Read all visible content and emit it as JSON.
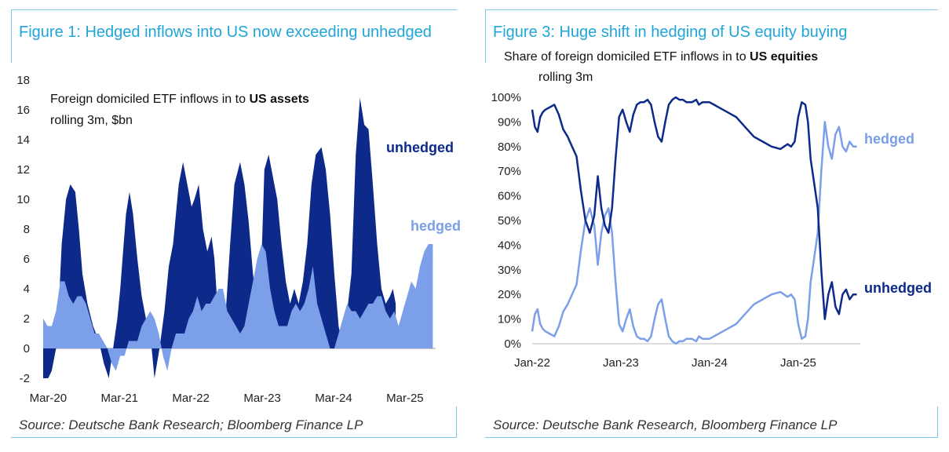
{
  "figure1": {
    "title": "Figure 1: Hedged inflows into US now exceeding unhedged",
    "source": "Source: Deutsche Bank Research; Bloomberg Finance LP"
  },
  "figure3": {
    "title": "Figure 3: Huge shift in hedging of US equity buying",
    "source": "Source: Deutsche Bank Research, Bloomberg Finance LP"
  },
  "chart_data": [
    {
      "type": "area",
      "subtitle_part1": "Foreign domiciled ETF inflows in to ",
      "subtitle_bold": "US assets",
      "subtitle_line2": "rolling 3m, $bn",
      "ylim": [
        -2,
        18
      ],
      "y_ticks": [
        "18",
        "16",
        "14",
        "12",
        "10",
        "8",
        "6",
        "4",
        "2",
        "0",
        "-2"
      ],
      "x_ticks": [
        "Mar-20",
        "Mar-21",
        "Mar-22",
        "Mar-23",
        "Mar-24",
        "Mar-25"
      ],
      "x_range": [
        2020.1,
        2025.6
      ],
      "colors": {
        "unhedged": "#0d2a8a",
        "hedged": "#7b9fe8"
      },
      "series": [
        {
          "name": "unhedged",
          "x": [
            2020.1,
            2020.17,
            2020.22,
            2020.28,
            2020.33,
            2020.36,
            2020.42,
            2020.48,
            2020.55,
            2020.6,
            2020.65,
            2020.72,
            2020.8,
            2020.88,
            2020.95,
            2021.02,
            2021.08,
            2021.14,
            2021.18,
            2021.22,
            2021.26,
            2021.31,
            2021.36,
            2021.42,
            2021.48,
            2021.54,
            2021.6,
            2021.66,
            2021.73,
            2021.8,
            2021.86,
            2021.92,
            2021.96,
            2022.0,
            2022.06,
            2022.12,
            2022.18,
            2022.22,
            2022.28,
            2022.34,
            2022.4,
            2022.46,
            2022.5,
            2022.54,
            2022.6,
            2022.66,
            2022.72,
            2022.78,
            2022.86,
            2022.92,
            2022.98,
            2023.04,
            2023.1,
            2023.16,
            2023.2,
            2023.26,
            2023.32,
            2023.38,
            2023.44,
            2023.5,
            2023.56,
            2023.62,
            2023.68,
            2023.74,
            2023.8,
            2023.86,
            2023.92,
            2024.0,
            2024.06,
            2024.12,
            2024.18,
            2024.24,
            2024.3,
            2024.36,
            2024.42,
            2024.48,
            2024.54,
            2024.6,
            2024.66,
            2024.72,
            2024.78,
            2024.84,
            2024.9,
            2024.96,
            2025.0,
            2025.04
          ],
          "values": [
            -2,
            -2,
            -1.5,
            0,
            4,
            7,
            10,
            11,
            10.5,
            8,
            5,
            3,
            1.5,
            0.5,
            -1,
            -2,
            0,
            2,
            4,
            6.5,
            9,
            10.5,
            9,
            6,
            3.5,
            2,
            1,
            -2,
            0,
            2.5,
            5.5,
            7,
            9,
            11,
            12.5,
            11,
            9.5,
            10,
            11,
            8,
            6.5,
            7.5,
            6,
            3,
            1.5,
            2.5,
            7,
            11,
            12.5,
            11,
            8.5,
            5,
            3,
            6,
            12,
            13,
            11.5,
            10,
            7,
            4.5,
            3,
            4,
            3,
            4.5,
            7,
            11,
            13,
            13.5,
            12,
            9,
            5,
            1.5,
            0,
            2.5,
            5,
            13,
            16.8,
            15,
            14.7,
            11,
            7,
            4,
            3,
            3.5,
            4,
            3
          ]
        },
        {
          "name": "hedged",
          "x": [
            2020.1,
            2020.16,
            2020.22,
            2020.28,
            2020.34,
            2020.4,
            2020.46,
            2020.52,
            2020.58,
            2020.64,
            2020.7,
            2020.76,
            2020.82,
            2020.88,
            2020.94,
            2021.0,
            2021.06,
            2021.12,
            2021.18,
            2021.24,
            2021.3,
            2021.36,
            2021.42,
            2021.48,
            2021.54,
            2021.6,
            2021.66,
            2021.72,
            2021.78,
            2021.84,
            2021.9,
            2021.96,
            2022.02,
            2022.08,
            2022.14,
            2022.2,
            2022.26,
            2022.32,
            2022.38,
            2022.44,
            2022.5,
            2022.56,
            2022.62,
            2022.68,
            2022.74,
            2022.8,
            2022.86,
            2022.92,
            2022.98,
            2023.04,
            2023.1,
            2023.16,
            2023.22,
            2023.28,
            2023.34,
            2023.4,
            2023.46,
            2023.52,
            2023.58,
            2023.64,
            2023.7,
            2023.76,
            2023.82,
            2023.88,
            2023.94,
            2024.0,
            2024.06,
            2024.12,
            2024.18,
            2024.24,
            2024.3,
            2024.36,
            2024.42,
            2024.48,
            2024.54,
            2024.6,
            2024.66,
            2024.72,
            2024.78,
            2024.84,
            2024.9,
            2024.96,
            2025.02,
            2025.08,
            2025.14,
            2025.2,
            2025.26,
            2025.32,
            2025.38,
            2025.44,
            2025.5,
            2025.56
          ],
          "values": [
            2,
            1.5,
            1.5,
            2.5,
            4.5,
            4.5,
            3.5,
            3,
            3.5,
            3.5,
            3,
            2,
            1,
            1,
            0.5,
            0,
            -1,
            -1.5,
            -0.5,
            -0.5,
            0.5,
            0.5,
            0.5,
            1.5,
            2,
            2.5,
            2,
            1,
            -0.5,
            -1.5,
            0,
            1,
            1,
            1,
            2,
            2.5,
            3.5,
            2.5,
            3,
            3,
            3.5,
            4,
            4,
            2.5,
            2,
            1.5,
            1,
            1.5,
            3,
            4.5,
            6,
            7,
            6.5,
            4,
            2.5,
            1.5,
            1.5,
            1.5,
            2.5,
            3,
            2.5,
            3,
            4,
            5.5,
            3,
            2,
            1,
            0,
            0,
            1,
            2,
            3,
            2.5,
            2.5,
            2,
            2.5,
            3,
            3,
            3.5,
            3.5,
            2.5,
            2,
            2.5,
            1.5,
            2.5,
            3.5,
            4.5,
            4,
            5.5,
            6.5,
            7,
            7
          ]
        }
      ]
    },
    {
      "type": "line",
      "subtitle_part1": "Share of foreign domiciled ETF inflows in to ",
      "subtitle_bold": "US equities",
      "subtitle_line2": "rolling 3m",
      "ylim": [
        0,
        100
      ],
      "y_ticks": [
        "100%",
        "90%",
        "80%",
        "70%",
        "60%",
        "50%",
        "40%",
        "30%",
        "20%",
        "10%",
        "0%"
      ],
      "x_ticks": [
        "Jan-22",
        "Jan-23",
        "Jan-24",
        "Jan-25"
      ],
      "x_range": [
        2022.0,
        2025.7
      ],
      "colors": {
        "unhedged": "#0d2a8a",
        "hedged": "#7b9fe8"
      },
      "series": [
        {
          "name": "unhedged",
          "x": [
            2022.0,
            2022.03,
            2022.06,
            2022.09,
            2022.12,
            2022.15,
            2022.2,
            2022.25,
            2022.3,
            2022.35,
            2022.4,
            2022.45,
            2022.5,
            2022.55,
            2022.6,
            2022.65,
            2022.7,
            2022.74,
            2022.78,
            2022.82,
            2022.86,
            2022.9,
            2022.94,
            2022.98,
            2023.02,
            2023.06,
            2023.1,
            2023.14,
            2023.18,
            2023.22,
            2023.26,
            2023.3,
            2023.34,
            2023.38,
            2023.42,
            2023.46,
            2023.5,
            2023.54,
            2023.58,
            2023.62,
            2023.66,
            2023.7,
            2023.74,
            2023.8,
            2023.85,
            2023.88,
            2023.92,
            2023.96,
            2024.0,
            2024.05,
            2024.1,
            2024.2,
            2024.3,
            2024.4,
            2024.5,
            2024.6,
            2024.7,
            2024.8,
            2024.84,
            2024.88,
            2024.92,
            2024.96,
            2025.0,
            2025.04,
            2025.08,
            2025.11,
            2025.14,
            2025.18,
            2025.22,
            2025.26,
            2025.3,
            2025.34,
            2025.38,
            2025.42,
            2025.46,
            2025.5,
            2025.54,
            2025.58,
            2025.62,
            2025.66
          ],
          "values": [
            95,
            88,
            86,
            92,
            94,
            95,
            96,
            97,
            93,
            87,
            84,
            80,
            76,
            62,
            50,
            45,
            52,
            68,
            55,
            48,
            45,
            55,
            75,
            92,
            95,
            90,
            86,
            93,
            97,
            98,
            98,
            99,
            97,
            90,
            84,
            82,
            90,
            97,
            99,
            100,
            99,
            99,
            98,
            98,
            99,
            97,
            98,
            98,
            98,
            97,
            96,
            94,
            92,
            88,
            84,
            82,
            80,
            79,
            80,
            81,
            80,
            82,
            92,
            98,
            97,
            90,
            75,
            65,
            55,
            30,
            10,
            20,
            25,
            15,
            12,
            20,
            22,
            18,
            20,
            20
          ]
        },
        {
          "name": "hedged",
          "x": [
            2022.0,
            2022.03,
            2022.06,
            2022.09,
            2022.12,
            2022.15,
            2022.2,
            2022.25,
            2022.3,
            2022.35,
            2022.4,
            2022.45,
            2022.5,
            2022.55,
            2022.6,
            2022.65,
            2022.7,
            2022.74,
            2022.78,
            2022.82,
            2022.86,
            2022.9,
            2022.94,
            2022.98,
            2023.02,
            2023.06,
            2023.1,
            2023.14,
            2023.18,
            2023.22,
            2023.26,
            2023.3,
            2023.34,
            2023.38,
            2023.42,
            2023.46,
            2023.5,
            2023.54,
            2023.58,
            2023.62,
            2023.66,
            2023.7,
            2023.74,
            2023.8,
            2023.85,
            2023.88,
            2023.92,
            2023.96,
            2024.0,
            2024.05,
            2024.1,
            2024.2,
            2024.3,
            2024.4,
            2024.5,
            2024.6,
            2024.7,
            2024.8,
            2024.84,
            2024.88,
            2024.92,
            2024.96,
            2025.0,
            2025.04,
            2025.08,
            2025.11,
            2025.14,
            2025.18,
            2025.22,
            2025.26,
            2025.3,
            2025.34,
            2025.38,
            2025.42,
            2025.46,
            2025.5,
            2025.54,
            2025.58,
            2025.62,
            2025.66
          ],
          "values": [
            5,
            12,
            14,
            8,
            6,
            5,
            4,
            3,
            7,
            13,
            16,
            20,
            24,
            38,
            50,
            55,
            48,
            32,
            45,
            52,
            55,
            45,
            25,
            8,
            5,
            10,
            14,
            7,
            3,
            2,
            2,
            1,
            3,
            10,
            16,
            18,
            10,
            3,
            1,
            0,
            1,
            1,
            2,
            2,
            1,
            3,
            2,
            2,
            2,
            3,
            4,
            6,
            8,
            12,
            16,
            18,
            20,
            21,
            20,
            19,
            20,
            18,
            8,
            2,
            3,
            10,
            25,
            35,
            45,
            70,
            90,
            80,
            75,
            85,
            88,
            80,
            78,
            82,
            80,
            80
          ]
        }
      ]
    }
  ]
}
